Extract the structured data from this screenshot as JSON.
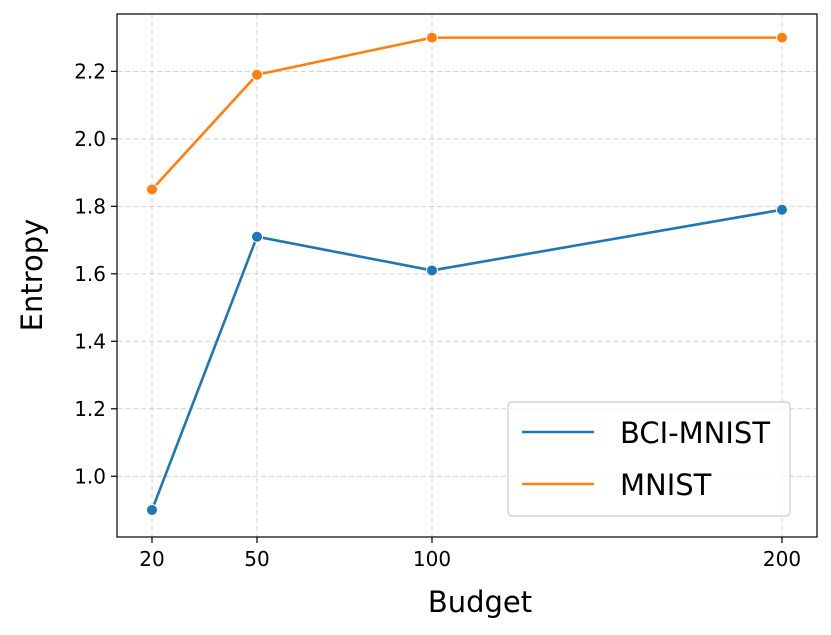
{
  "chart_data": {
    "type": "line",
    "title": "",
    "xlabel": "Budget",
    "ylabel": "Entropy",
    "x": [
      20,
      50,
      100,
      200
    ],
    "x_tick_labels": [
      "20",
      "50",
      "100",
      "200"
    ],
    "xlim": [
      10,
      210
    ],
    "ylim": [
      0.82,
      2.37
    ],
    "yticks": [
      1.0,
      1.2,
      1.4,
      1.6,
      1.8,
      2.0,
      2.2
    ],
    "y_tick_labels": [
      "1.0",
      "1.2",
      "1.4",
      "1.6",
      "1.8",
      "2.0",
      "2.2"
    ],
    "grid": true,
    "legend_position": "bottom-right",
    "series": [
      {
        "name": "BCI-MNIST",
        "color": "#1f77b4",
        "values": [
          0.9,
          1.71,
          1.61,
          1.79
        ]
      },
      {
        "name": "MNIST",
        "color": "#ff7f0e",
        "values": [
          1.85,
          2.19,
          2.3,
          2.3
        ]
      }
    ]
  }
}
